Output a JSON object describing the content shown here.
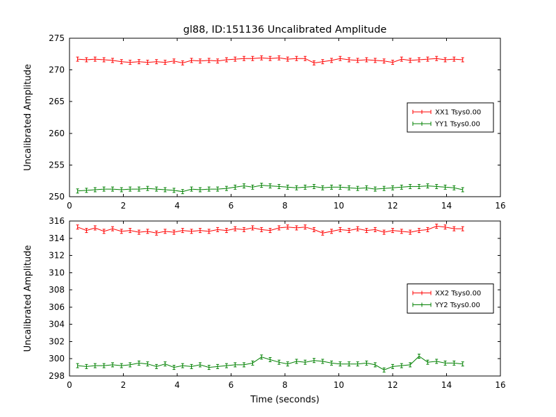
{
  "figure": {
    "title": "gl88, ID:151136 Uncalibrated Amplitude",
    "background": "#ffffff",
    "axis_color": "#000000"
  },
  "chart_data": [
    {
      "type": "line",
      "title": "",
      "xlabel": "",
      "ylabel": "Uncalibrated Amplitude",
      "xlim": [
        0,
        16
      ],
      "ylim": [
        250,
        275
      ],
      "xticks": [
        0,
        2,
        4,
        6,
        8,
        10,
        12,
        14,
        16
      ],
      "yticks": [
        250,
        255,
        260,
        265,
        270,
        275
      ],
      "grid": false,
      "legend_position": "center-right",
      "marker": "errorbar-plus",
      "x": [
        0.3,
        0.63,
        0.95,
        1.28,
        1.6,
        1.93,
        2.25,
        2.58,
        2.9,
        3.23,
        3.55,
        3.88,
        4.2,
        4.53,
        4.85,
        5.18,
        5.5,
        5.83,
        6.15,
        6.48,
        6.8,
        7.13,
        7.45,
        7.78,
        8.1,
        8.43,
        8.75,
        9.08,
        9.4,
        9.73,
        10.05,
        10.38,
        10.7,
        11.03,
        11.35,
        11.68,
        12.0,
        12.33,
        12.65,
        12.98,
        13.3,
        13.63,
        13.95,
        14.28,
        14.6
      ],
      "series": [
        {
          "name": "XX1 Tsys0.00",
          "color": "#ff0000",
          "values": [
            271.7,
            271.6,
            271.7,
            271.6,
            271.5,
            271.3,
            271.2,
            271.3,
            271.2,
            271.3,
            271.2,
            271.4,
            271.1,
            271.5,
            271.4,
            271.5,
            271.4,
            271.6,
            271.7,
            271.8,
            271.8,
            271.9,
            271.8,
            271.9,
            271.7,
            271.8,
            271.8,
            271.1,
            271.3,
            271.5,
            271.8,
            271.6,
            271.5,
            271.6,
            271.5,
            271.4,
            271.2,
            271.7,
            271.5,
            271.6,
            271.7,
            271.8,
            271.6,
            271.7,
            271.6
          ]
        },
        {
          "name": "YY1 Tsys0.00",
          "color": "#008000",
          "values": [
            250.9,
            251.0,
            251.1,
            251.2,
            251.2,
            251.1,
            251.2,
            251.2,
            251.3,
            251.2,
            251.1,
            251.0,
            250.8,
            251.2,
            251.1,
            251.2,
            251.2,
            251.3,
            251.5,
            251.7,
            251.5,
            251.8,
            251.7,
            251.6,
            251.5,
            251.4,
            251.5,
            251.6,
            251.4,
            251.5,
            251.5,
            251.4,
            251.3,
            251.4,
            251.2,
            251.3,
            251.4,
            251.5,
            251.6,
            251.6,
            251.7,
            251.6,
            251.5,
            251.4,
            251.1
          ]
        }
      ]
    },
    {
      "type": "line",
      "title": "",
      "xlabel": "Time (seconds)",
      "ylabel": "Uncalibrated Amplitude",
      "xlim": [
        0,
        16
      ],
      "ylim": [
        298,
        316
      ],
      "xticks": [
        0,
        2,
        4,
        6,
        8,
        10,
        12,
        14,
        16
      ],
      "yticks": [
        298,
        300,
        302,
        304,
        306,
        308,
        310,
        312,
        314,
        316
      ],
      "grid": false,
      "legend_position": "center-right",
      "marker": "errorbar-plus",
      "x": [
        0.3,
        0.63,
        0.95,
        1.28,
        1.6,
        1.93,
        2.25,
        2.58,
        2.9,
        3.23,
        3.55,
        3.88,
        4.2,
        4.53,
        4.85,
        5.18,
        5.5,
        5.83,
        6.15,
        6.48,
        6.8,
        7.13,
        7.45,
        7.78,
        8.1,
        8.43,
        8.75,
        9.08,
        9.4,
        9.73,
        10.05,
        10.38,
        10.7,
        11.03,
        11.35,
        11.68,
        12.0,
        12.33,
        12.65,
        12.98,
        13.3,
        13.63,
        13.95,
        14.28,
        14.6
      ],
      "series": [
        {
          "name": "XX2 Tsys0.00",
          "color": "#ff0000",
          "values": [
            315.3,
            314.9,
            315.2,
            314.8,
            315.1,
            314.8,
            314.9,
            314.7,
            314.8,
            314.6,
            314.8,
            314.7,
            314.9,
            314.8,
            314.9,
            314.8,
            315.0,
            314.9,
            315.1,
            315.0,
            315.2,
            315.0,
            314.9,
            315.2,
            315.3,
            315.2,
            315.3,
            315.0,
            314.6,
            314.8,
            315.0,
            314.9,
            315.1,
            314.9,
            315.0,
            314.7,
            314.9,
            314.8,
            314.7,
            314.9,
            315.0,
            315.4,
            315.3,
            315.1,
            315.1
          ]
        },
        {
          "name": "YY2 Tsys0.00",
          "color": "#008000",
          "values": [
            299.2,
            299.1,
            299.2,
            299.2,
            299.3,
            299.2,
            299.3,
            299.5,
            299.4,
            299.1,
            299.4,
            299.0,
            299.2,
            299.1,
            299.3,
            299.0,
            299.1,
            299.2,
            299.3,
            299.3,
            299.5,
            300.2,
            299.9,
            299.6,
            299.4,
            299.7,
            299.6,
            299.8,
            299.7,
            299.5,
            299.4,
            299.4,
            299.4,
            299.5,
            299.3,
            298.7,
            299.1,
            299.2,
            299.3,
            300.3,
            299.6,
            299.7,
            299.5,
            299.5,
            299.4
          ]
        }
      ]
    }
  ]
}
